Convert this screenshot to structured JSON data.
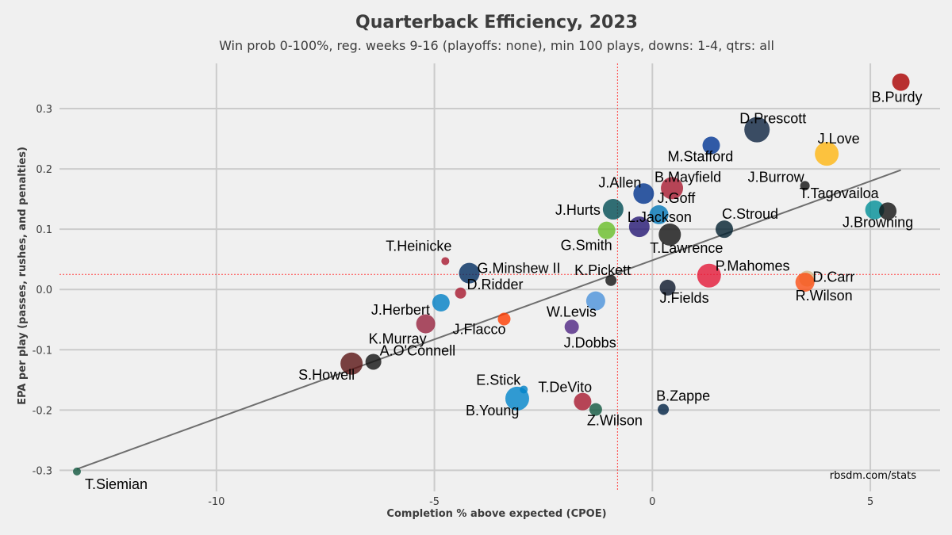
{
  "chart_data": {
    "type": "scatter",
    "title": "Quarterback Efficiency, 2023",
    "subtitle": "Win prob 0-100%, reg. weeks 9-16 (playoffs: none), min 100 plays, downs: 1-4, qtrs: all",
    "xlabel": "Completion % above expected (CPOE)",
    "ylabel": "EPA per play (passes, rushes, and penalties)",
    "xlim": [
      -13.6,
      6.6
    ],
    "ylim": [
      -0.335,
      0.375
    ],
    "x_ticks": [
      -10,
      -5,
      0,
      5
    ],
    "y_ticks": [
      -0.3,
      -0.2,
      -0.1,
      0.0,
      0.1,
      0.2,
      0.3
    ],
    "x_tick_labels": [
      "-10",
      "-5",
      "0",
      "5"
    ],
    "y_tick_labels": [
      "-0.3",
      "-0.2",
      "-0.1",
      "0.0",
      "0.1",
      "0.2",
      "0.3"
    ],
    "grid": true,
    "mean_cpoe": -0.8,
    "mean_epa": 0.025,
    "trend_line": {
      "x": [
        -13.2,
        5.7
      ],
      "y": [
        -0.298,
        0.198
      ]
    },
    "credit": "rbsdm.com/stats",
    "points": [
      {
        "name": "B.Purdy",
        "x": 5.7,
        "y": 0.344,
        "size": 11,
        "color": "#aa0000"
      },
      {
        "name": "D.Prescott",
        "x": 2.4,
        "y": 0.265,
        "size": 16,
        "color": "#0c2340"
      },
      {
        "name": "J.Love",
        "x": 4.0,
        "y": 0.225,
        "size": 15,
        "color": "#ffb612"
      },
      {
        "name": "M.Stafford",
        "x": 1.35,
        "y": 0.239,
        "size": 11,
        "color": "#003594"
      },
      {
        "name": "J.Burrow",
        "x": 3.5,
        "y": 0.172,
        "size": 6,
        "color": "#111111"
      },
      {
        "name": "B.Mayfield",
        "x": 0.45,
        "y": 0.168,
        "size": 14,
        "color": "#a71930"
      },
      {
        "name": "J.Allen",
        "x": -0.2,
        "y": 0.159,
        "size": 13,
        "color": "#00338d"
      },
      {
        "name": "J.Goff",
        "x": 0.15,
        "y": 0.124,
        "size": 12,
        "color": "#0076b6"
      },
      {
        "name": "J.Hurts",
        "x": -0.9,
        "y": 0.133,
        "size": 13,
        "color": "#004c54"
      },
      {
        "name": "L.Jackson",
        "x": -0.3,
        "y": 0.104,
        "size": 13,
        "color": "#241773"
      },
      {
        "name": "G.Smith",
        "x": -1.05,
        "y": 0.098,
        "size": 11,
        "color": "#69be28"
      },
      {
        "name": "T.Lawrence",
        "x": 0.4,
        "y": 0.091,
        "size": 14,
        "color": "#111111"
      },
      {
        "name": "C.Stroud",
        "x": 1.65,
        "y": 0.1,
        "size": 11,
        "color": "#03202f"
      },
      {
        "name": "T.Tagovailoa",
        "x": 5.1,
        "y": 0.132,
        "size": 12,
        "color": "#008e97"
      },
      {
        "name": "J.Browning",
        "x": 5.4,
        "y": 0.13,
        "size": 11,
        "color": "#111111"
      },
      {
        "name": "T.Heinicke",
        "x": -4.75,
        "y": 0.047,
        "size": 5,
        "color": "#a71930"
      },
      {
        "name": "G.Minshew II",
        "x": -4.2,
        "y": 0.027,
        "size": 13,
        "color": "#002c5f"
      },
      {
        "name": "D.Ridder",
        "x": -4.4,
        "y": -0.006,
        "size": 7,
        "color": "#a71930"
      },
      {
        "name": "K.Pickett",
        "x": -0.95,
        "y": 0.015,
        "size": 7,
        "color": "#111111"
      },
      {
        "name": "P.Mahomes",
        "x": 1.3,
        "y": 0.023,
        "size": 15,
        "color": "#e31837"
      },
      {
        "name": "D.Carr",
        "x": 3.55,
        "y": 0.018,
        "size": 10,
        "color": "#d3bc8d"
      },
      {
        "name": "R.Wilson",
        "x": 3.5,
        "y": 0.012,
        "size": 12,
        "color": "#fb4f14"
      },
      {
        "name": "J.Fields",
        "x": 0.35,
        "y": 0.003,
        "size": 10,
        "color": "#0b162a"
      },
      {
        "name": "J.Herbert",
        "x": -4.85,
        "y": -0.022,
        "size": 11,
        "color": "#0080c6"
      },
      {
        "name": "W.Levis",
        "x": -1.3,
        "y": -0.019,
        "size": 12,
        "color": "#4b92db"
      },
      {
        "name": "K.Murray",
        "x": -5.2,
        "y": -0.057,
        "size": 12,
        "color": "#97233f"
      },
      {
        "name": "J.Flacco",
        "x": -3.4,
        "y": -0.049,
        "size": 8,
        "color": "#ff3c00"
      },
      {
        "name": "J.Dobbs",
        "x": -1.85,
        "y": -0.062,
        "size": 9,
        "color": "#4f2683"
      },
      {
        "name": "S.Howell",
        "x": -6.9,
        "y": -0.123,
        "size": 14,
        "color": "#5a1414"
      },
      {
        "name": "A.O'Connell",
        "x": -6.4,
        "y": -0.12,
        "size": 10,
        "color": "#111111"
      },
      {
        "name": "E.Stick",
        "x": -2.95,
        "y": -0.166,
        "size": 5,
        "color": "#0080c6"
      },
      {
        "name": "B.Young",
        "x": -3.1,
        "y": -0.181,
        "size": 15,
        "color": "#0085ca"
      },
      {
        "name": "T.DeVito",
        "x": -1.6,
        "y": -0.186,
        "size": 11,
        "color": "#a71930"
      },
      {
        "name": "Z.Wilson",
        "x": -1.3,
        "y": -0.199,
        "size": 8,
        "color": "#125740"
      },
      {
        "name": "B.Zappe",
        "x": 0.25,
        "y": -0.199,
        "size": 7,
        "color": "#002244"
      },
      {
        "name": "T.Siemian",
        "x": -13.2,
        "y": -0.302,
        "size": 5,
        "color": "#125740"
      }
    ]
  }
}
